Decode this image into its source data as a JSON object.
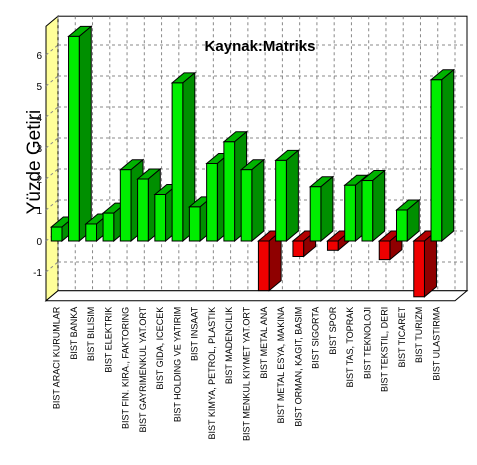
{
  "chart_data": {
    "type": "bar",
    "title": "Kaynak:Matriks",
    "xlabel": "",
    "ylabel": "Yüzde Getiri",
    "ylim": [
      -1.8,
      6.8
    ],
    "yticks": [
      -1,
      0,
      1,
      2,
      3,
      4,
      5,
      6
    ],
    "grid": true,
    "legend": "none",
    "colors": {
      "positive": "#00ee00",
      "negative": "#ee0000",
      "backwall": "#ffff99"
    },
    "categories": [
      "BIST ARACI KURUMLAR",
      "BIST BANKA",
      "BIST BILISIM",
      "BIST ELEKTRIK",
      "BIST FIN. KIRA., FAKTORING",
      "BIST GAYRIMENKUL YAT.ORT",
      "BIST GIDA, ICECEK",
      "BIST HOLDING VE YATIRIM",
      "BIST INSAAT",
      "BIST KIMYA, PETROL, PLASTIK",
      "BIST MADENCILIK",
      "BIST MENKUL KIYMET YAT.ORT",
      "BIST METAL ANA",
      "BIST METAL ESYA, MAKINA",
      "BIST ORMAN, KAGIT, BASIM",
      "BIST SIGORTA",
      "BIST SPOR",
      "BIST TAS, TOPRAK",
      "BIST TEKNOLOJI",
      "BIST TEKSTIL, DERI",
      "BIST TICARET",
      "BIST TURIZM",
      "BIST ULASTIRMA"
    ],
    "values": [
      0.45,
      6.6,
      0.55,
      0.9,
      2.3,
      2.0,
      1.5,
      5.1,
      1.1,
      2.5,
      3.2,
      2.3,
      -1.6,
      2.6,
      -0.5,
      1.75,
      -0.3,
      1.8,
      1.95,
      -0.6,
      1.0,
      -1.8,
      5.2
    ]
  }
}
